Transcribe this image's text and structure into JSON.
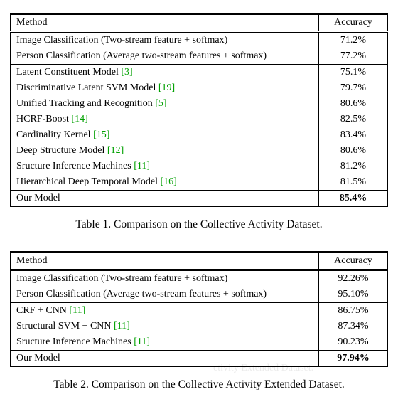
{
  "table1": {
    "caption": "Table 1. Comparison on the Collective Activity Dataset.",
    "header": {
      "method": "Method",
      "accuracy": "Accuracy"
    },
    "rows": [
      {
        "method": "Image Classification (Two-stream feature + softmax)",
        "acc": "71.2%",
        "cite": null,
        "group_start": true
      },
      {
        "method": "Person Classification (Average two-stream features + softmax)",
        "acc": "77.2%",
        "cite": null
      },
      {
        "method": "Latent Constituent Model ",
        "acc": "75.1%",
        "cite": "[3]",
        "group_start": true
      },
      {
        "method": "Discriminative Latent SVM Model ",
        "acc": "79.7%",
        "cite": "[19]"
      },
      {
        "method": "Unified Tracking and Recognition ",
        "acc": "80.6%",
        "cite": "[5]"
      },
      {
        "method": "HCRF-Boost ",
        "acc": "82.5%",
        "cite": "[14]"
      },
      {
        "method": "Cardinality Kernel ",
        "acc": "83.4%",
        "cite": "[15]"
      },
      {
        "method": "Deep Structure Model ",
        "acc": "80.6%",
        "cite": "[12]"
      },
      {
        "method": "Sructure Inference Machines ",
        "acc": "81.2%",
        "cite": "[11]"
      },
      {
        "method": "Hierarchical Deep Temporal Model ",
        "acc": "81.5%",
        "cite": "[16]"
      },
      {
        "method": "Our Model",
        "acc": "85.4%",
        "cite": null,
        "group_start": true,
        "bold": true
      }
    ]
  },
  "table2": {
    "caption": "Table 2. Comparison on the Collective Activity Extended Dataset.",
    "header": {
      "method": "Method",
      "accuracy": "Accuracy"
    },
    "rows": [
      {
        "method": "Image Classification (Two-stream feature + softmax)",
        "acc": "92.26%",
        "cite": null,
        "group_start": true
      },
      {
        "method": "Person Classification (Average two-stream features + softmax)",
        "acc": "95.10%",
        "cite": null
      },
      {
        "method": "CRF + CNN ",
        "acc": "86.75%",
        "cite": "[11]",
        "group_start": true
      },
      {
        "method": "Structural SVM + CNN ",
        "acc": "87.34%",
        "cite": "[11]"
      },
      {
        "method": "Sructure Inference Machines ",
        "acc": "90.23%",
        "cite": "[11]"
      },
      {
        "method": "Our Model",
        "acc": "97.94%",
        "cite": null,
        "group_start": true,
        "bold": true
      }
    ]
  },
  "watermark": "ctivity Extended Dataset.",
  "styling": {
    "cite_color": "#00a000",
    "text_color": "#000000",
    "font_family": "Times New Roman",
    "caption_fontsize_pt": 15.5,
    "table_fontsize_pt": 14
  }
}
